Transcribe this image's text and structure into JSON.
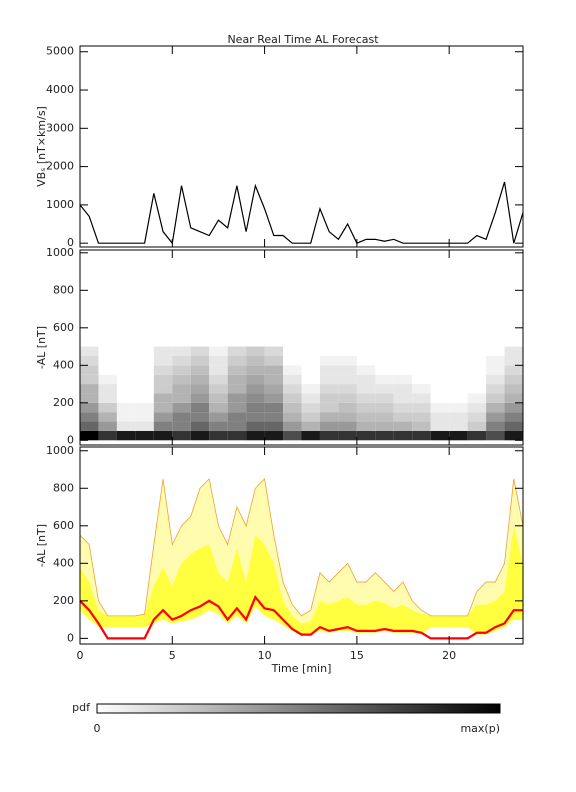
{
  "chart_data": [
    {
      "type": "line",
      "title": "Near Real Time AL Forecast",
      "ylabel": "VBₛ [nT×km/s]",
      "color": "#000000",
      "x": [
        0,
        0.5,
        1,
        1.5,
        2,
        2.5,
        3,
        3.5,
        4,
        4.5,
        5,
        5.5,
        6,
        6.5,
        7,
        7.5,
        8,
        8.5,
        9,
        9.5,
        10,
        10.5,
        11,
        11.5,
        12,
        12.5,
        13,
        13.5,
        14,
        14.5,
        15,
        15.5,
        16,
        16.5,
        17,
        17.5,
        18,
        18.5,
        19,
        19.5,
        20,
        20.5,
        21,
        21.5,
        22,
        22.5,
        23,
        23.5,
        24
      ],
      "values": [
        1000,
        700,
        0,
        0,
        0,
        0,
        0,
        0,
        1300,
        300,
        0,
        1500,
        400,
        300,
        200,
        600,
        400,
        1500,
        300,
        1500,
        900,
        200,
        200,
        0,
        0,
        0,
        900,
        300,
        100,
        500,
        0,
        100,
        100,
        50,
        100,
        0,
        0,
        0,
        0,
        0,
        0,
        0,
        0,
        200,
        100,
        800,
        1600,
        0,
        800
      ],
      "xlim": [
        0,
        24
      ],
      "ylim": [
        -100,
        5150
      ],
      "yticks": [
        0,
        1000,
        2000,
        3000,
        4000,
        5000
      ]
    },
    {
      "type": "heatmap",
      "ylabel": "-AL [nT]",
      "xlim": [
        0,
        24
      ],
      "ylim": [
        -25,
        1015
      ],
      "yticks": [
        0,
        200,
        400,
        600,
        800,
        1000
      ],
      "xbins": [
        0,
        1,
        2,
        3,
        4,
        5,
        6,
        7,
        8,
        9,
        10,
        11,
        12,
        13,
        14,
        15,
        16,
        17,
        18,
        19,
        20,
        21,
        22,
        23,
        24
      ],
      "ybins": [
        0,
        50,
        100,
        150,
        200,
        250,
        300,
        350,
        400,
        450,
        500
      ],
      "z": [
        [
          1,
          0.6,
          0.5,
          0.4,
          0.3,
          0.3,
          0.2,
          0.2,
          0.15,
          0.1
        ],
        [
          0.8,
          0.4,
          0.3,
          0.2,
          0.1,
          0.1,
          0.05,
          0,
          0,
          0
        ],
        [
          0.9,
          0.1,
          0.05,
          0.05,
          0,
          0,
          0,
          0,
          0,
          0
        ],
        [
          0.9,
          0.1,
          0.05,
          0.05,
          0,
          0,
          0,
          0,
          0,
          0
        ],
        [
          0.9,
          0.5,
          0.4,
          0.3,
          0.3,
          0.2,
          0.2,
          0.15,
          0.1,
          0.1
        ],
        [
          0.8,
          0.5,
          0.5,
          0.4,
          0.3,
          0.3,
          0.25,
          0.2,
          0.15,
          0.1
        ],
        [
          0.9,
          0.6,
          0.5,
          0.5,
          0.4,
          0.35,
          0.3,
          0.25,
          0.2,
          0.15
        ],
        [
          0.8,
          0.5,
          0.4,
          0.3,
          0.25,
          0.2,
          0.15,
          0.1,
          0.1,
          0.05
        ],
        [
          0.8,
          0.5,
          0.5,
          0.4,
          0.4,
          0.3,
          0.3,
          0.25,
          0.2,
          0.15
        ],
        [
          0.9,
          0.6,
          0.5,
          0.5,
          0.45,
          0.4,
          0.35,
          0.3,
          0.25,
          0.2
        ],
        [
          0.9,
          0.6,
          0.5,
          0.5,
          0.4,
          0.35,
          0.3,
          0.3,
          0.2,
          0.15
        ],
        [
          0.7,
          0.4,
          0.3,
          0.25,
          0.2,
          0.15,
          0.1,
          0.05,
          0,
          0
        ],
        [
          0.9,
          0.3,
          0.2,
          0.15,
          0.1,
          0.05,
          0,
          0,
          0,
          0
        ],
        [
          0.8,
          0.4,
          0.3,
          0.2,
          0.2,
          0.15,
          0.1,
          0.1,
          0.05,
          0
        ],
        [
          0.8,
          0.4,
          0.3,
          0.25,
          0.2,
          0.15,
          0.1,
          0.1,
          0.05,
          0
        ],
        [
          0.8,
          0.3,
          0.25,
          0.2,
          0.15,
          0.1,
          0.1,
          0.05,
          0,
          0
        ],
        [
          0.8,
          0.3,
          0.25,
          0.2,
          0.15,
          0.1,
          0.05,
          0,
          0,
          0
        ],
        [
          0.8,
          0.3,
          0.2,
          0.15,
          0.1,
          0.1,
          0.05,
          0,
          0,
          0
        ],
        [
          0.8,
          0.25,
          0.2,
          0.15,
          0.1,
          0.05,
          0,
          0,
          0,
          0
        ],
        [
          0.9,
          0.1,
          0.1,
          0.05,
          0,
          0,
          0,
          0,
          0,
          0
        ],
        [
          0.9,
          0.1,
          0.1,
          0.05,
          0,
          0,
          0,
          0,
          0,
          0
        ],
        [
          0.8,
          0.2,
          0.15,
          0.1,
          0.05,
          0,
          0,
          0,
          0,
          0
        ],
        [
          0.7,
          0.5,
          0.4,
          0.3,
          0.2,
          0.15,
          0.1,
          0.05,
          0.05,
          0
        ],
        [
          0.9,
          0.6,
          0.5,
          0.4,
          0.3,
          0.25,
          0.2,
          0.15,
          0.1,
          0.1
        ]
      ],
      "colorbar": {
        "label": "pdf",
        "min_label": "0",
        "max_label": "max(p)"
      }
    },
    {
      "type": "band",
      "ylabel": "-AL [nT]",
      "xlabel": "Time [min]",
      "xlim": [
        0,
        24
      ],
      "xticks": [
        0,
        5,
        10,
        15,
        20
      ],
      "ylim": [
        -30,
        1020
      ],
      "yticks": [
        0,
        200,
        400,
        600,
        800,
        1000
      ],
      "x": [
        0,
        0.5,
        1,
        1.5,
        2,
        2.5,
        3,
        3.5,
        4,
        4.5,
        5,
        5.5,
        6,
        6.5,
        7,
        7.5,
        8,
        8.5,
        9,
        9.5,
        10,
        10.5,
        11,
        11.5,
        12,
        12.5,
        13,
        13.5,
        14,
        14.5,
        15,
        15.5,
        16,
        16.5,
        17,
        17.5,
        18,
        18.5,
        19,
        19.5,
        20,
        20.5,
        21,
        21.5,
        22,
        22.5,
        23,
        23.5,
        24
      ],
      "series": [
        {
          "color": "#f0a030",
          "values": [
            550,
            500,
            200,
            120,
            120,
            120,
            120,
            130,
            500,
            850,
            500,
            600,
            650,
            800,
            850,
            600,
            500,
            700,
            600,
            800,
            850,
            550,
            300,
            180,
            120,
            150,
            350,
            300,
            350,
            400,
            300,
            300,
            350,
            300,
            250,
            300,
            200,
            150,
            120,
            120,
            120,
            120,
            120,
            250,
            300,
            300,
            400,
            850,
            600
          ]
        },
        {
          "color": "#ffff40",
          "values": [
            380,
            300,
            150,
            120,
            120,
            120,
            120,
            130,
            280,
            380,
            280,
            400,
            450,
            480,
            500,
            350,
            300,
            480,
            300,
            550,
            500,
            400,
            200,
            120,
            80,
            90,
            200,
            180,
            200,
            220,
            180,
            180,
            200,
            190,
            160,
            180,
            150,
            130,
            120,
            120,
            120,
            120,
            120,
            180,
            180,
            200,
            250,
            600,
            400
          ]
        },
        {
          "color": "#fffcb0",
          "values": [
            150,
            100,
            60,
            60,
            60,
            60,
            60,
            60,
            80,
            100,
            80,
            90,
            100,
            120,
            150,
            130,
            80,
            120,
            80,
            170,
            120,
            100,
            70,
            40,
            20,
            20,
            40,
            30,
            40,
            40,
            30,
            30,
            30,
            40,
            30,
            30,
            30,
            20,
            60,
            60,
            60,
            60,
            60,
            20,
            20,
            40,
            60,
            100,
            100
          ]
        },
        {
          "color": "#ff0000",
          "values": [
            200,
            150,
            80,
            0,
            0,
            0,
            0,
            0,
            100,
            150,
            100,
            120,
            150,
            170,
            200,
            170,
            100,
            160,
            100,
            220,
            160,
            150,
            100,
            50,
            20,
            20,
            60,
            40,
            50,
            60,
            40,
            40,
            40,
            50,
            40,
            40,
            40,
            30,
            0,
            0,
            0,
            0,
            0,
            30,
            30,
            60,
            80,
            150,
            150
          ]
        }
      ]
    }
  ]
}
